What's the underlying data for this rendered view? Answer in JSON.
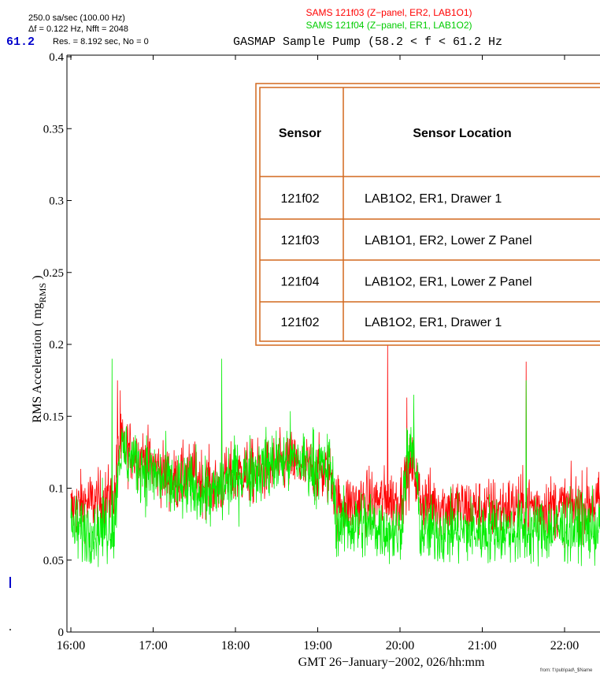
{
  "header": {
    "sample_rate": "250.0 sa/sec (100.00 Hz)",
    "freq_resolution": "Δf = 0.122 Hz,  Nfft = 2048",
    "time_resolution": "Res. = 8.192 sec, No = 0",
    "left_fragment": "< 61.2",
    "series_1_label": "SAMS 121f03 (Z−panel, ER2, LAB1O1)",
    "series_2_label": "SAMS 121f04 (Z−panel, ER1, LAB1O2)",
    "title": "GASMAP Sample Pump (58.2 < f < 61.2 Hz",
    "footer_note": "from: f:\\pub\\pad\\_$Name"
  },
  "colors": {
    "series_1": "#ff0000",
    "series_2": "#00ee00",
    "table_border": "#d2691e",
    "axis": "#000000",
    "left_fragment": "#0000cc"
  },
  "table": {
    "headers": [
      "Sensor",
      "Sensor Location"
    ],
    "rows": [
      [
        "121f02",
        "LAB1O2, ER1, Drawer 1"
      ],
      [
        "121f03",
        "LAB1O1, ER2, Lower Z Panel"
      ],
      [
        "121f04",
        "LAB1O2, ER1, Lower Z Panel"
      ],
      [
        "121f02",
        "LAB1O2, ER1, Drawer 1"
      ]
    ]
  },
  "chart_data": {
    "type": "line",
    "title": "GASMAP Sample Pump (58.2 < f < 61.2 Hz",
    "xlabel": "GMT 26−January−2002, 026/hh:mm",
    "ylabel": "RMS Acceleration ( mg",
    "ylabel_sub": "RMS",
    "ylabel_close": " )",
    "xlim": [
      "16:00",
      "22:35"
    ],
    "ylim": [
      0,
      0.4
    ],
    "x_ticks": [
      "16:00",
      "17:00",
      "18:00",
      "19:00",
      "20:00",
      "21:00",
      "22:00"
    ],
    "y_ticks": [
      "0",
      "0.05",
      "0.1",
      "0.15",
      "0.2",
      "0.25",
      "0.3",
      "0.35",
      "0.4"
    ],
    "grid": false,
    "series": [
      {
        "name": "SAMS 121f03 (Z−panel, ER2, LAB1O1)",
        "color": "#ff0000",
        "noise": 0.011,
        "spikes": [
          {
            "x": "16:34",
            "y": 0.175
          },
          {
            "x": "16:36",
            "y": 0.168
          },
          {
            "x": "17:50",
            "y": 0.16
          },
          {
            "x": "19:51",
            "y": 0.205
          },
          {
            "x": "20:05",
            "y": 0.163
          },
          {
            "x": "21:32",
            "y": 0.188
          }
        ],
        "values": [
          {
            "x": "16:00",
            "y": 0.085
          },
          {
            "x": "16:10",
            "y": 0.09
          },
          {
            "x": "16:20",
            "y": 0.09
          },
          {
            "x": "16:32",
            "y": 0.095
          },
          {
            "x": "16:35",
            "y": 0.13
          },
          {
            "x": "16:45",
            "y": 0.125
          },
          {
            "x": "17:00",
            "y": 0.115
          },
          {
            "x": "17:15",
            "y": 0.105
          },
          {
            "x": "17:30",
            "y": 0.11
          },
          {
            "x": "17:45",
            "y": 0.1
          },
          {
            "x": "18:00",
            "y": 0.11
          },
          {
            "x": "18:20",
            "y": 0.112
          },
          {
            "x": "18:40",
            "y": 0.118
          },
          {
            "x": "19:00",
            "y": 0.112
          },
          {
            "x": "19:10",
            "y": 0.11
          },
          {
            "x": "19:14",
            "y": 0.088
          },
          {
            "x": "19:30",
            "y": 0.09
          },
          {
            "x": "19:50",
            "y": 0.092
          },
          {
            "x": "20:00",
            "y": 0.092
          },
          {
            "x": "20:05",
            "y": 0.11
          },
          {
            "x": "20:10",
            "y": 0.115
          },
          {
            "x": "20:15",
            "y": 0.092
          },
          {
            "x": "20:30",
            "y": 0.088
          },
          {
            "x": "21:00",
            "y": 0.085
          },
          {
            "x": "21:30",
            "y": 0.088
          },
          {
            "x": "22:00",
            "y": 0.087
          },
          {
            "x": "22:35",
            "y": 0.09
          }
        ]
      },
      {
        "name": "SAMS 121f04 (Z−panel, ER1, LAB1O2)",
        "color": "#00ee00",
        "noise": 0.012,
        "spikes": [
          {
            "x": "16:30",
            "y": 0.19
          },
          {
            "x": "17:50",
            "y": 0.19
          },
          {
            "x": "20:10",
            "y": 0.165
          },
          {
            "x": "21:32",
            "y": 0.175
          }
        ],
        "values": [
          {
            "x": "16:00",
            "y": 0.072
          },
          {
            "x": "16:10",
            "y": 0.07
          },
          {
            "x": "16:20",
            "y": 0.072
          },
          {
            "x": "16:32",
            "y": 0.075
          },
          {
            "x": "16:35",
            "y": 0.125
          },
          {
            "x": "16:45",
            "y": 0.12
          },
          {
            "x": "17:00",
            "y": 0.11
          },
          {
            "x": "17:15",
            "y": 0.1
          },
          {
            "x": "17:30",
            "y": 0.1
          },
          {
            "x": "17:45",
            "y": 0.095
          },
          {
            "x": "18:00",
            "y": 0.11
          },
          {
            "x": "18:20",
            "y": 0.115
          },
          {
            "x": "18:40",
            "y": 0.12
          },
          {
            "x": "19:00",
            "y": 0.115
          },
          {
            "x": "19:10",
            "y": 0.112
          },
          {
            "x": "19:14",
            "y": 0.075
          },
          {
            "x": "19:30",
            "y": 0.075
          },
          {
            "x": "19:50",
            "y": 0.072
          },
          {
            "x": "20:00",
            "y": 0.068
          },
          {
            "x": "20:05",
            "y": 0.12
          },
          {
            "x": "20:10",
            "y": 0.125
          },
          {
            "x": "20:15",
            "y": 0.07
          },
          {
            "x": "20:30",
            "y": 0.07
          },
          {
            "x": "21:00",
            "y": 0.07
          },
          {
            "x": "21:30",
            "y": 0.07
          },
          {
            "x": "22:00",
            "y": 0.072
          },
          {
            "x": "22:35",
            "y": 0.072
          }
        ]
      }
    ]
  }
}
